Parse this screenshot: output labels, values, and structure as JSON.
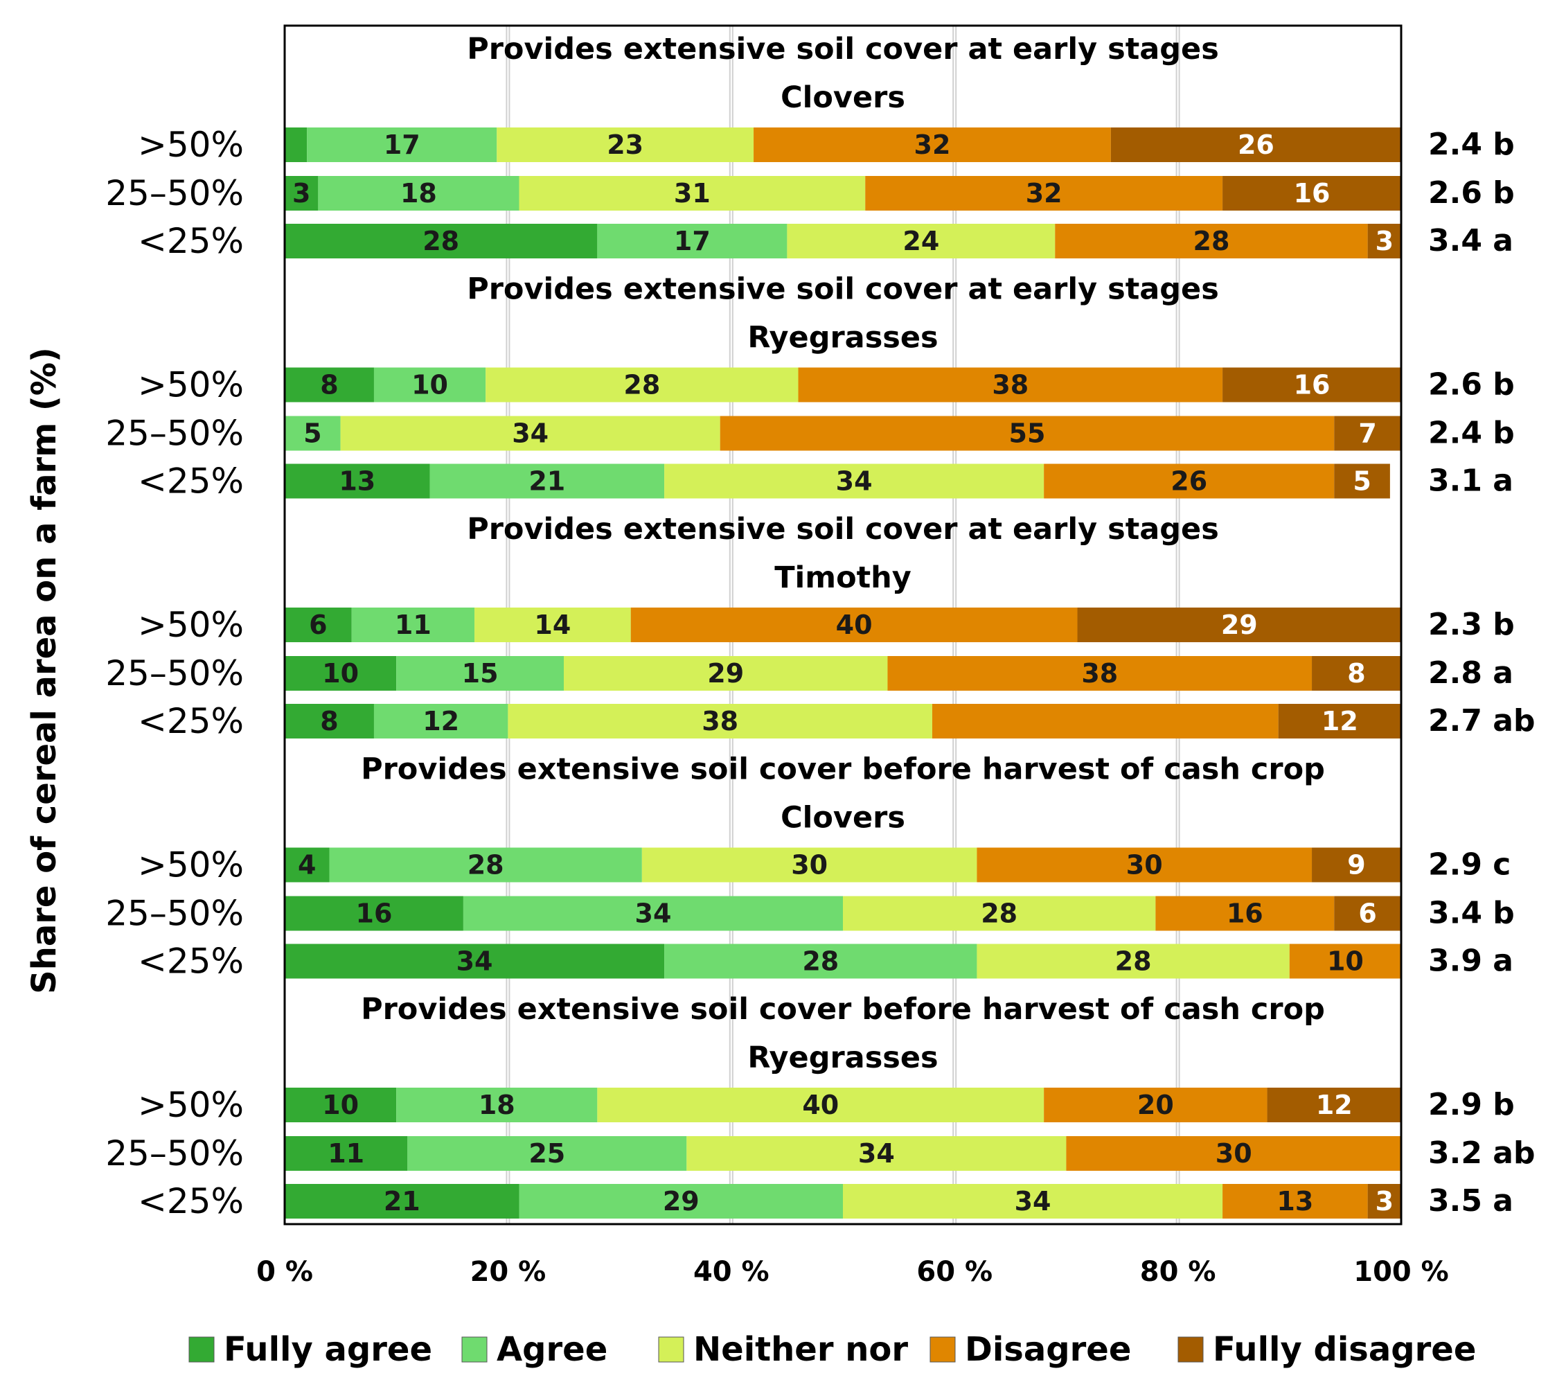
{
  "chart_data": {
    "type": "bar",
    "orientation": "horizontal",
    "stacked": true,
    "percent_scale": true,
    "ylabel": "Share of cereal area on a farm (%)",
    "xlim": [
      0,
      100
    ],
    "x_ticks": [
      "0 %",
      "20 %",
      "40 %",
      "60 %",
      "80 %",
      "100 %"
    ],
    "grid": true,
    "legend_position": "bottom",
    "series": [
      {
        "name": "Fully agree",
        "color": "#33aa33"
      },
      {
        "name": "Agree",
        "color": "#6fdb6f"
      },
      {
        "name": "Neither nor",
        "color": "#d4f058"
      },
      {
        "name": "Disagree",
        "color": "#e08600"
      },
      {
        "name": "Fully disagree",
        "color": "#a35c00"
      }
    ],
    "groups": [
      {
        "title": "Provides extensive soil cover at early stages",
        "subtitle": "Clovers",
        "rows": [
          {
            "category": ">50%",
            "values": [
              2,
              17,
              23,
              32,
              26
            ],
            "labels": [
              "",
              "17",
              "23",
              "32",
              "26"
            ],
            "score": "2.4 b"
          },
          {
            "category": "25–50%",
            "values": [
              3,
              18,
              31,
              32,
              16
            ],
            "labels": [
              "3",
              "18",
              "31",
              "32",
              "16"
            ],
            "score": "2.6 b"
          },
          {
            "category": "<25%",
            "values": [
              28,
              17,
              24,
              28,
              3
            ],
            "labels": [
              "28",
              "17",
              "24",
              "28",
              "3"
            ],
            "score": "3.4 a"
          }
        ]
      },
      {
        "title": "Provides extensive soil cover at early stages",
        "subtitle": "Ryegrasses",
        "rows": [
          {
            "category": ">50%",
            "values": [
              8,
              10,
              28,
              38,
              16
            ],
            "labels": [
              "8",
              "10",
              "28",
              "38",
              "16"
            ],
            "score": "2.6 b"
          },
          {
            "category": "25–50%",
            "values": [
              0,
              5,
              34,
              55,
              7
            ],
            "labels": [
              "",
              "5",
              "34",
              "55",
              "7"
            ],
            "score": "2.4 b"
          },
          {
            "category": "<25%",
            "values": [
              13,
              21,
              34,
              26,
              5
            ],
            "labels": [
              "13",
              "21",
              "34",
              "26",
              "5"
            ],
            "score": "3.1 a"
          }
        ]
      },
      {
        "title": "Provides extensive soil cover at early stages",
        "subtitle": "Timothy",
        "rows": [
          {
            "category": ">50%",
            "values": [
              6,
              11,
              14,
              40,
              29
            ],
            "labels": [
              "6",
              "11",
              "14",
              "40",
              "29"
            ],
            "score": "2.3 b"
          },
          {
            "category": "25–50%",
            "values": [
              10,
              15,
              29,
              38,
              8
            ],
            "labels": [
              "10",
              "15",
              "29",
              "38",
              "8"
            ],
            "score": "2.8 a"
          },
          {
            "category": "<25%",
            "values": [
              8,
              12,
              38,
              31,
              12
            ],
            "labels": [
              "8",
              "12",
              "38",
              "",
              "12"
            ],
            "score": "2.7 ab"
          }
        ]
      },
      {
        "title": "Provides extensive soil cover before harvest of cash crop",
        "subtitle": "Clovers",
        "rows": [
          {
            "category": ">50%",
            "values": [
              4,
              28,
              30,
              30,
              9
            ],
            "labels": [
              "4",
              "28",
              "30",
              "30",
              "9"
            ],
            "score": "2.9 c"
          },
          {
            "category": "25–50%",
            "values": [
              16,
              34,
              28,
              16,
              6
            ],
            "labels": [
              "16",
              "34",
              "28",
              "16",
              "6"
            ],
            "score": "3.4 b"
          },
          {
            "category": "<25%",
            "values": [
              34,
              28,
              28,
              10,
              0
            ],
            "labels": [
              "34",
              "28",
              "28",
              "10",
              ""
            ],
            "score": "3.9 a"
          }
        ]
      },
      {
        "title": "Provides extensive soil cover before harvest of cash crop",
        "subtitle": "Ryegrasses",
        "rows": [
          {
            "category": ">50%",
            "values": [
              10,
              18,
              40,
              20,
              12
            ],
            "labels": [
              "10",
              "18",
              "40",
              "20",
              "12"
            ],
            "score": "2.9 b"
          },
          {
            "category": "25–50%",
            "values": [
              11,
              25,
              34,
              30,
              0
            ],
            "labels": [
              "11",
              "25",
              "34",
              "30",
              ""
            ],
            "score": "3.2 ab"
          },
          {
            "category": "<25%",
            "values": [
              21,
              29,
              34,
              13,
              3
            ],
            "labels": [
              "21",
              "29",
              "34",
              "13",
              "3"
            ],
            "score": "3.5 a"
          }
        ]
      }
    ]
  }
}
